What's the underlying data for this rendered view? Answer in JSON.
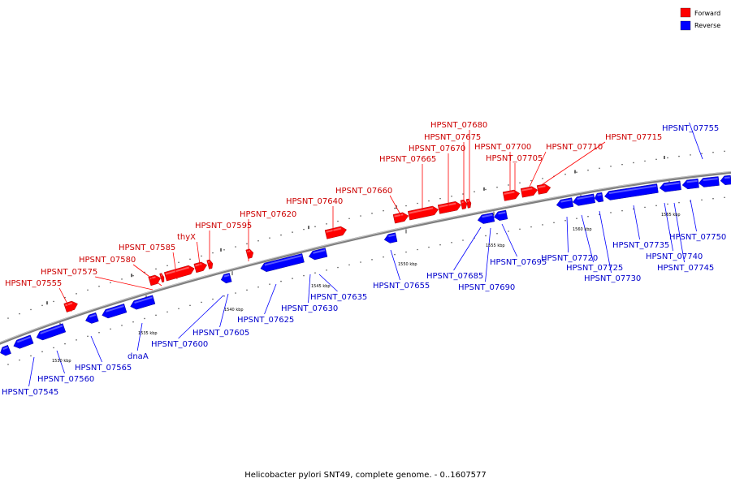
{
  "caption": "Helicobacter pylori SNT49, complete genome. - 0..1607577",
  "legend": [
    {
      "label": "Forward",
      "color": "#ff0000"
    },
    {
      "label": "Reverse",
      "color": "#0000ff"
    }
  ],
  "colors": {
    "forward": "#ff0000",
    "reverse": "#0000ff",
    "forward_text": "#cc0000",
    "reverse_text": "#0000cc",
    "backbone": "#808080"
  },
  "scale_labels": [
    "1530 kbp",
    "1535 kbp",
    "1540 kbp",
    "1545 kbp",
    "1550 kbp",
    "1555 kbp",
    "1560 kbp",
    "1565 kbp"
  ],
  "genes": [
    {
      "name": "HPSNT_07545",
      "strand": "reverse"
    },
    {
      "name": "HPSNT_07555",
      "strand": "forward"
    },
    {
      "name": "HPSNT_07560",
      "strand": "reverse"
    },
    {
      "name": "HPSNT_07565",
      "strand": "reverse"
    },
    {
      "name": "HPSNT_07575",
      "strand": "forward"
    },
    {
      "name": "dnaA",
      "strand": "reverse"
    },
    {
      "name": "HPSNT_07580",
      "strand": "forward"
    },
    {
      "name": "HPSNT_07585",
      "strand": "forward"
    },
    {
      "name": "thyX",
      "strand": "forward"
    },
    {
      "name": "HPSNT_07595",
      "strand": "forward"
    },
    {
      "name": "HPSNT_07600",
      "strand": "reverse"
    },
    {
      "name": "HPSNT_07605",
      "strand": "reverse"
    },
    {
      "name": "HPSNT_07620",
      "strand": "forward"
    },
    {
      "name": "HPSNT_07625",
      "strand": "reverse"
    },
    {
      "name": "HPSNT_07630",
      "strand": "reverse"
    },
    {
      "name": "HPSNT_07635",
      "strand": "reverse"
    },
    {
      "name": "HPSNT_07640",
      "strand": "forward"
    },
    {
      "name": "HPSNT_07655",
      "strand": "reverse"
    },
    {
      "name": "HPSNT_07660",
      "strand": "forward"
    },
    {
      "name": "HPSNT_07665",
      "strand": "forward"
    },
    {
      "name": "HPSNT_07670",
      "strand": "forward"
    },
    {
      "name": "HPSNT_07675",
      "strand": "forward"
    },
    {
      "name": "HPSNT_07680",
      "strand": "forward"
    },
    {
      "name": "HPSNT_07685",
      "strand": "reverse"
    },
    {
      "name": "HPSNT_07690",
      "strand": "reverse"
    },
    {
      "name": "HPSNT_07695",
      "strand": "reverse"
    },
    {
      "name": "HPSNT_07700",
      "strand": "forward"
    },
    {
      "name": "HPSNT_07705",
      "strand": "forward"
    },
    {
      "name": "HPSNT_07710",
      "strand": "forward"
    },
    {
      "name": "HPSNT_07715",
      "strand": "forward"
    },
    {
      "name": "HPSNT_07720",
      "strand": "reverse"
    },
    {
      "name": "HPSNT_07725",
      "strand": "reverse"
    },
    {
      "name": "HPSNT_07730",
      "strand": "reverse"
    },
    {
      "name": "HPSNT_07735",
      "strand": "reverse"
    },
    {
      "name": "HPSNT_07740",
      "strand": "reverse"
    },
    {
      "name": "HPSNT_07745",
      "strand": "reverse"
    },
    {
      "name": "HPSNT_07750",
      "strand": "reverse"
    },
    {
      "name": "HPSNT_07755",
      "strand": "reverse"
    }
  ]
}
